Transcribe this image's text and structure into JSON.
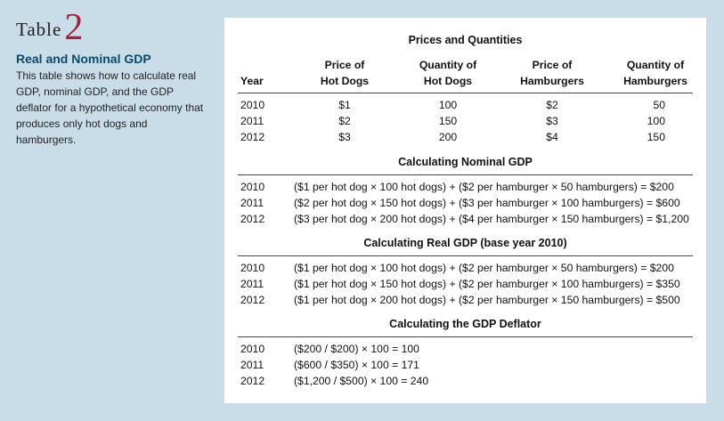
{
  "side": {
    "table_word": "Table",
    "table_number": "2",
    "title": "Real and Nominal GDP",
    "description": "This table shows how to calculate real GDP, nominal GDP, and the GDP deflator for a hypothetical economy that produces only hot dogs and hamburgers."
  },
  "prices": {
    "title": "Prices and Quantities",
    "headers": {
      "year": "Year",
      "price_hot_dogs": [
        "Price of",
        "Hot Dogs"
      ],
      "qty_hot_dogs": [
        "Quantity of",
        "Hot Dogs"
      ],
      "price_hamburgers": [
        "Price of",
        "Hamburgers"
      ],
      "qty_hamburgers": [
        "Quantity of",
        "Hamburgers"
      ]
    },
    "rows": [
      {
        "year": "2010",
        "price_hd": "$1",
        "qty_hd": "100",
        "price_hb": "$2",
        "qty_hb": "50"
      },
      {
        "year": "2011",
        "price_hd": "$2",
        "qty_hd": "150",
        "price_hb": "$3",
        "qty_hb": "100"
      },
      {
        "year": "2012",
        "price_hd": "$3",
        "qty_hd": "200",
        "price_hb": "$4",
        "qty_hb": "150"
      }
    ]
  },
  "nominal": {
    "title": "Calculating Nominal GDP",
    "rows": [
      {
        "year": "2010",
        "calc": "($1 per hot dog × 100 hot dogs) + ($2 per hamburger × 50 hamburgers) = $200"
      },
      {
        "year": "2011",
        "calc": "($2 per hot dog × 150 hot dogs) + ($3 per hamburger × 100 hamburgers) = $600"
      },
      {
        "year": "2012",
        "calc": "($3 per hot dog × 200 hot dogs) + ($4 per hamburger × 150 hamburgers) = $1,200"
      }
    ]
  },
  "real": {
    "title": "Calculating Real GDP (base year 2010)",
    "rows": [
      {
        "year": "2010",
        "calc": "($1 per hot dog × 100 hot dogs) + ($2 per hamburger × 50 hamburgers) = $200"
      },
      {
        "year": "2011",
        "calc": "($1 per hot dog × 150 hot dogs) + ($2 per hamburger × 100 hamburgers) = $350"
      },
      {
        "year": "2012",
        "calc": "($1 per hot dog × 200 hot dogs) + ($2 per hamburger × 150 hamburgers) = $500"
      }
    ]
  },
  "deflator": {
    "title": "Calculating the GDP Deflator",
    "rows": [
      {
        "year": "2010",
        "calc": "($200 / $200) × 100 = 100"
      },
      {
        "year": "2011",
        "calc": "($600 / $350) × 100 = 171"
      },
      {
        "year": "2012",
        "calc": "($1,200 / $500) × 100 = 240"
      }
    ]
  }
}
